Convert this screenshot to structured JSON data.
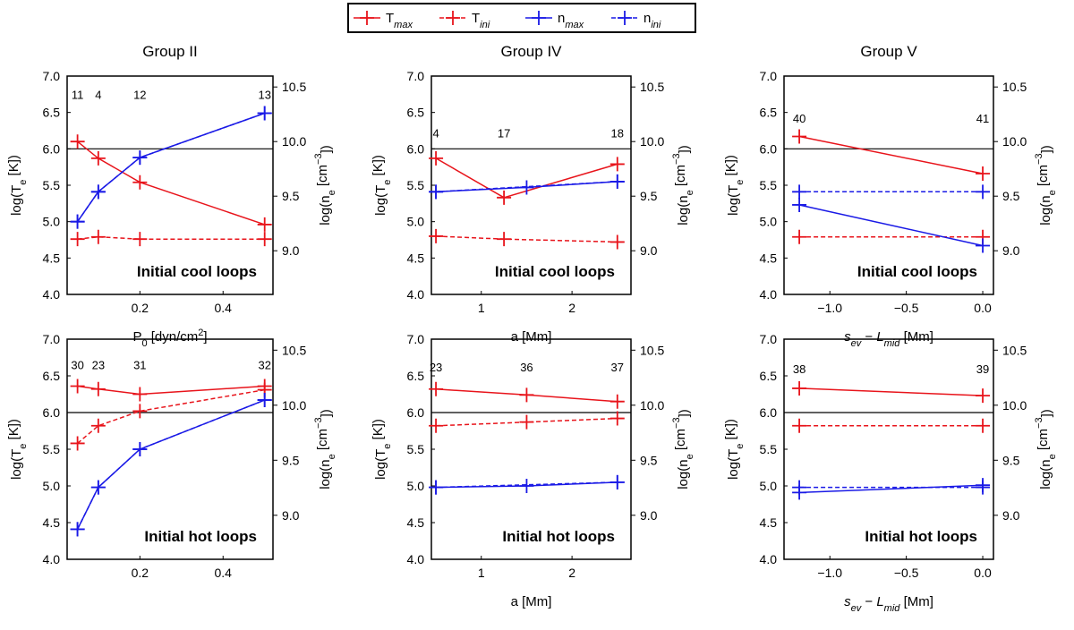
{
  "legend": [
    {
      "key": "T",
      "sub": "max",
      "color": "#e8141b",
      "dash": false
    },
    {
      "key": "T",
      "sub": "ini",
      "color": "#e8141b",
      "dash": true
    },
    {
      "key": "n",
      "sub": "max",
      "color": "#1a1ae6",
      "dash": false
    },
    {
      "key": "n",
      "sub": "ini",
      "color": "#1a1ae6",
      "dash": true
    }
  ],
  "colors": {
    "red": "#e8141b",
    "blue": "#1a1ae6"
  },
  "left_axis_label": {
    "main": "log(T",
    "sub": "e",
    "tail": " [K])"
  },
  "right_axis_label": {
    "main": "log(n",
    "sub": "e",
    "mid": " [cm",
    "sup": "−3",
    "tail": "])"
  },
  "chart_data": [
    {
      "type": "line",
      "title": "Group II",
      "inner_label": "Initial cool loops",
      "xlabel_parts": [
        {
          "t": "P"
        },
        {
          "t": "0",
          "sub": true
        },
        {
          "t": " [dyn/cm"
        },
        {
          "t": "2",
          "sup": true
        },
        {
          "t": "]"
        }
      ],
      "xlim": [
        0.025,
        0.52
      ],
      "xticks": [
        0.2,
        0.4
      ],
      "xticklabels": [
        "0.2",
        "0.4"
      ],
      "ylim": [
        4.0,
        7.0
      ],
      "yticks": [
        4.0,
        4.5,
        5.0,
        5.5,
        6.0,
        6.5,
        7.0
      ],
      "yticklabels": [
        "4.0",
        "4.5",
        "5.0",
        "5.5",
        "6.0",
        "6.5",
        "7.0"
      ],
      "y2ticks": [
        9.0,
        9.5,
        10.0,
        10.5
      ],
      "y2ticklabels": [
        "9.0",
        "9.5",
        "10.0",
        "10.5"
      ],
      "y2lim": [
        8.6,
        10.6
      ],
      "hline": 6.0,
      "annotations": {
        "x": [
          0.05,
          0.1,
          0.2,
          0.5
        ],
        "labels": [
          "11",
          "4",
          "12",
          "13"
        ],
        "y": 6.75
      },
      "series": [
        {
          "name": "T_max",
          "color": "#e8141b",
          "dash": false,
          "x": [
            0.05,
            0.1,
            0.2,
            0.5
          ],
          "y": [
            6.1,
            5.87,
            5.54,
            4.96
          ]
        },
        {
          "name": "T_ini",
          "color": "#e8141b",
          "dash": true,
          "x": [
            0.05,
            0.1,
            0.2,
            0.5
          ],
          "y": [
            4.76,
            4.79,
            4.76,
            4.76
          ]
        },
        {
          "name": "n_max",
          "color": "#1a1ae6",
          "dash": false,
          "x": [
            0.05,
            0.1,
            0.2,
            0.5
          ],
          "y": [
            5.0,
            5.41,
            5.88,
            6.49
          ]
        },
        {
          "name": "n_ini",
          "color": "#1a1ae6",
          "dash": true,
          "x": [
            0.05,
            0.1,
            0.2,
            0.5
          ],
          "y": [
            5.0,
            5.41,
            5.88,
            6.49
          ]
        }
      ]
    },
    {
      "type": "line",
      "title": "Group IV",
      "inner_label": "Initial cool loops",
      "xlabel_parts": [
        {
          "t": "a [Mm]"
        }
      ],
      "xlim": [
        0.45,
        2.65
      ],
      "xticks": [
        1,
        2
      ],
      "xticklabels": [
        "1",
        "2"
      ],
      "ylim": [
        4.0,
        7.0
      ],
      "yticks": [
        4.0,
        4.5,
        5.0,
        5.5,
        6.0,
        6.5,
        7.0
      ],
      "yticklabels": [
        "4.0",
        "4.5",
        "5.0",
        "5.5",
        "6.0",
        "6.5",
        "7.0"
      ],
      "y2ticks": [
        9.0,
        9.5,
        10.0,
        10.5
      ],
      "y2ticklabels": [
        "9.0",
        "9.5",
        "10.0",
        "10.5"
      ],
      "y2lim": [
        8.6,
        10.6
      ],
      "hline": 6.0,
      "annotations": {
        "x": [
          0.5,
          1.25,
          2.5
        ],
        "labels": [
          "4",
          "17",
          "18"
        ],
        "y": 6.22
      },
      "series": [
        {
          "name": "T_max",
          "color": "#e8141b",
          "dash": false,
          "x": [
            0.5,
            1.25,
            2.5
          ],
          "y": [
            5.87,
            5.33,
            5.79
          ]
        },
        {
          "name": "T_ini",
          "color": "#e8141b",
          "dash": true,
          "x": [
            0.5,
            1.25,
            2.5
          ],
          "y": [
            4.8,
            4.76,
            4.72
          ]
        },
        {
          "name": "n_max",
          "color": "#1a1ae6",
          "dash": false,
          "x": [
            0.5,
            1.5,
            2.5
          ],
          "y": [
            5.41,
            5.47,
            5.55
          ]
        },
        {
          "name": "n_ini",
          "color": "#1a1ae6",
          "dash": true,
          "x": [
            0.5,
            2.5
          ],
          "y": [
            5.41,
            5.55
          ]
        }
      ]
    },
    {
      "type": "line",
      "title": "Group V",
      "inner_label": "Initial cool loops",
      "xlabel_parts": [
        {
          "t": "s",
          "it": true
        },
        {
          "t": "ev",
          "sub": true,
          "it": true
        },
        {
          "t": " − "
        },
        {
          "t": "L",
          "it": true
        },
        {
          "t": "mid",
          "sub": true,
          "it": true
        },
        {
          "t": " [Mm]"
        }
      ],
      "xlim": [
        -1.3,
        0.07
      ],
      "xticks": [
        -1.0,
        -0.5,
        0.0
      ],
      "xticklabels": [
        "−1.0",
        "−0.5",
        "0.0"
      ],
      "ylim": [
        4.0,
        7.0
      ],
      "yticks": [
        4.0,
        4.5,
        5.0,
        5.5,
        6.0,
        6.5,
        7.0
      ],
      "yticklabels": [
        "4.0",
        "4.5",
        "5.0",
        "5.5",
        "6.0",
        "6.5",
        "7.0"
      ],
      "y2ticks": [
        9.0,
        9.5,
        10.0,
        10.5
      ],
      "y2ticklabels": [
        "9.0",
        "9.5",
        "10.0",
        "10.5"
      ],
      "y2lim": [
        8.6,
        10.6
      ],
      "hline": 6.0,
      "annotations": {
        "x": [
          -1.2,
          0.0
        ],
        "labels": [
          "40",
          "41"
        ],
        "y": 6.42
      },
      "series": [
        {
          "name": "T_max",
          "color": "#e8141b",
          "dash": false,
          "x": [
            -1.2,
            0.0
          ],
          "y": [
            6.17,
            5.66
          ]
        },
        {
          "name": "T_ini",
          "color": "#e8141b",
          "dash": true,
          "x": [
            -1.2,
            0.0
          ],
          "y": [
            4.79,
            4.79
          ]
        },
        {
          "name": "n_max",
          "color": "#1a1ae6",
          "dash": false,
          "x": [
            -1.2,
            0.0
          ],
          "y": [
            5.23,
            4.67
          ]
        },
        {
          "name": "n_ini",
          "color": "#1a1ae6",
          "dash": true,
          "x": [
            -1.2,
            0.0
          ],
          "y": [
            5.41,
            5.41
          ]
        }
      ]
    },
    {
      "type": "line",
      "title": "",
      "inner_label": "Initial hot loops",
      "xlabel_parts": [],
      "xlim": [
        0.025,
        0.52
      ],
      "xticks": [
        0.2,
        0.4
      ],
      "xticklabels": [
        "0.2",
        "0.4"
      ],
      "ylim": [
        4.0,
        7.0
      ],
      "yticks": [
        4.0,
        4.5,
        5.0,
        5.5,
        6.0,
        6.5,
        7.0
      ],
      "yticklabels": [
        "4.0",
        "4.5",
        "5.0",
        "5.5",
        "6.0",
        "6.5",
        "7.0"
      ],
      "y2ticks": [
        9.0,
        9.5,
        10.0,
        10.5
      ],
      "y2ticklabels": [
        "9.0",
        "9.5",
        "10.0",
        "10.5"
      ],
      "y2lim": [
        8.6,
        10.6
      ],
      "hline": 6.0,
      "annotations": {
        "x": [
          0.05,
          0.1,
          0.2,
          0.5
        ],
        "labels": [
          "30",
          "23",
          "31",
          "32"
        ],
        "y": 6.65
      },
      "series": [
        {
          "name": "T_max",
          "color": "#e8141b",
          "dash": false,
          "x": [
            0.05,
            0.1,
            0.2,
            0.5
          ],
          "y": [
            6.36,
            6.32,
            6.25,
            6.36
          ]
        },
        {
          "name": "T_ini",
          "color": "#e8141b",
          "dash": true,
          "x": [
            0.05,
            0.1,
            0.2,
            0.5
          ],
          "y": [
            5.58,
            5.82,
            6.02,
            6.31
          ]
        },
        {
          "name": "n_max",
          "color": "#1a1ae6",
          "dash": false,
          "x": [
            0.05,
            0.1,
            0.2,
            0.5
          ],
          "y": [
            4.41,
            4.98,
            5.5,
            6.17
          ]
        },
        {
          "name": "n_ini",
          "color": "#1a1ae6",
          "dash": true,
          "x": [
            0.05,
            0.1,
            0.2,
            0.5
          ],
          "y": [
            4.41,
            4.98,
            5.5,
            6.17
          ]
        }
      ]
    },
    {
      "type": "line",
      "title": "",
      "inner_label": "Initial hot loops",
      "xlabel_parts": [
        {
          "t": "a [Mm]"
        }
      ],
      "xlim": [
        0.45,
        2.65
      ],
      "xticks": [
        1,
        2
      ],
      "xticklabels": [
        "1",
        "2"
      ],
      "ylim": [
        4.0,
        7.0
      ],
      "yticks": [
        4.0,
        4.5,
        5.0,
        5.5,
        6.0,
        6.5,
        7.0
      ],
      "yticklabels": [
        "4.0",
        "4.5",
        "5.0",
        "5.5",
        "6.0",
        "6.5",
        "7.0"
      ],
      "y2ticks": [
        9.0,
        9.5,
        10.0,
        10.5
      ],
      "y2ticklabels": [
        "9.0",
        "9.5",
        "10.0",
        "10.5"
      ],
      "y2lim": [
        8.6,
        10.6
      ],
      "hline": 6.0,
      "annotations": {
        "x": [
          0.5,
          1.5,
          2.5
        ],
        "labels": [
          "23",
          "36",
          "37"
        ],
        "y": 6.62
      },
      "series": [
        {
          "name": "T_max",
          "color": "#e8141b",
          "dash": false,
          "x": [
            0.5,
            1.5,
            2.5
          ],
          "y": [
            6.32,
            6.24,
            6.15
          ]
        },
        {
          "name": "T_ini",
          "color": "#e8141b",
          "dash": true,
          "x": [
            0.5,
            1.5,
            2.5
          ],
          "y": [
            5.82,
            5.87,
            5.92
          ]
        },
        {
          "name": "n_max",
          "color": "#1a1ae6",
          "dash": false,
          "x": [
            0.5,
            1.5,
            2.5
          ],
          "y": [
            4.98,
            5.0,
            5.05
          ]
        },
        {
          "name": "n_ini",
          "color": "#1a1ae6",
          "dash": true,
          "x": [
            0.5,
            2.5
          ],
          "y": [
            4.98,
            5.05
          ]
        }
      ]
    },
    {
      "type": "line",
      "title": "",
      "inner_label": "Initial hot loops",
      "xlabel_parts": [
        {
          "t": "s",
          "it": true
        },
        {
          "t": "ev",
          "sub": true,
          "it": true
        },
        {
          "t": " − "
        },
        {
          "t": "L",
          "it": true
        },
        {
          "t": "mid",
          "sub": true,
          "it": true
        },
        {
          "t": " [Mm]"
        }
      ],
      "xlim": [
        -1.3,
        0.07
      ],
      "xticks": [
        -1.0,
        -0.5,
        0.0
      ],
      "xticklabels": [
        "−1.0",
        "−0.5",
        "0.0"
      ],
      "ylim": [
        4.0,
        7.0
      ],
      "yticks": [
        4.0,
        4.5,
        5.0,
        5.5,
        6.0,
        6.5,
        7.0
      ],
      "yticklabels": [
        "4.0",
        "4.5",
        "5.0",
        "5.5",
        "6.0",
        "6.5",
        "7.0"
      ],
      "y2ticks": [
        9.0,
        9.5,
        10.0,
        10.5
      ],
      "y2ticklabels": [
        "9.0",
        "9.5",
        "10.0",
        "10.5"
      ],
      "y2lim": [
        8.6,
        10.6
      ],
      "hline": 6.0,
      "annotations": {
        "x": [
          -1.2,
          0.0
        ],
        "labels": [
          "38",
          "39"
        ],
        "y": 6.6
      },
      "series": [
        {
          "name": "T_max",
          "color": "#e8141b",
          "dash": false,
          "x": [
            -1.2,
            0.0
          ],
          "y": [
            6.33,
            6.23
          ]
        },
        {
          "name": "T_ini",
          "color": "#e8141b",
          "dash": true,
          "x": [
            -1.2,
            0.0
          ],
          "y": [
            5.82,
            5.82
          ]
        },
        {
          "name": "n_max",
          "color": "#1a1ae6",
          "dash": false,
          "x": [
            -1.2,
            0.0
          ],
          "y": [
            4.91,
            5.01
          ]
        },
        {
          "name": "n_ini",
          "color": "#1a1ae6",
          "dash": true,
          "x": [
            -1.2,
            0.0
          ],
          "y": [
            4.98,
            4.98
          ]
        }
      ]
    }
  ]
}
